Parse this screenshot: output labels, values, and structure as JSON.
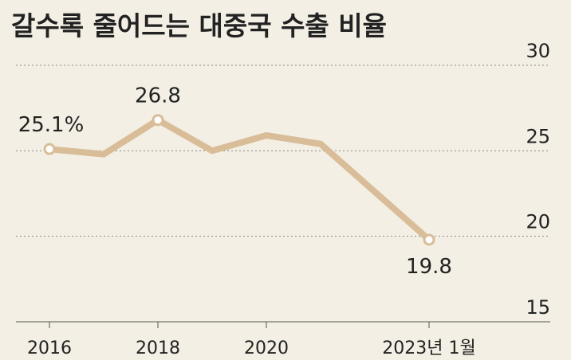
{
  "chart_data": {
    "type": "line",
    "title": "갈수록 줄어드는 대중국 수출 비율",
    "categories": [
      "2016",
      null,
      "2018",
      null,
      "2020",
      null,
      null,
      "2023년 1월"
    ],
    "series": [
      {
        "color": "#d8bd98",
        "values": [
          25.1,
          24.8,
          26.8,
          25.0,
          25.9,
          25.4,
          22.6,
          19.8
        ],
        "value_labels": [
          "25.1%",
          null,
          "26.8",
          null,
          null,
          null,
          null,
          "19.8"
        ]
      }
    ],
    "ylim": [
      15,
      30
    ],
    "yticks": [
      15,
      20,
      25,
      30
    ],
    "grid": true
  }
}
